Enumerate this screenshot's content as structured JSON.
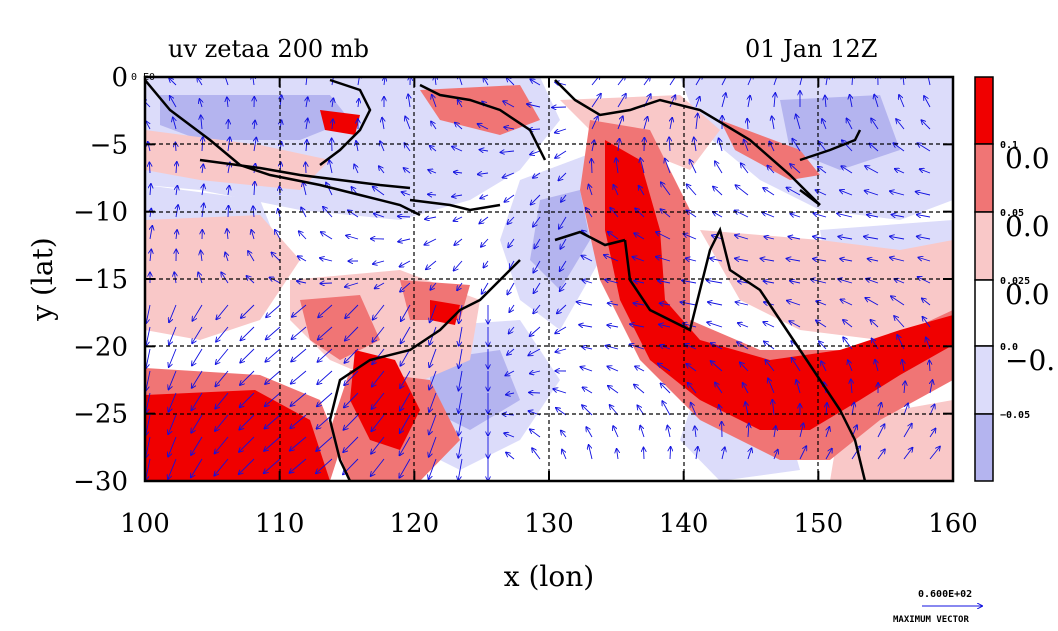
{
  "title_left": "uv zetaa 200 mb",
  "title_right": "01 Jan 12Z",
  "xlabel": "x (lon)",
  "ylabel": "y (lat)",
  "colors": {
    "strong_pos": "#f00000",
    "mid_pos": "#f07575",
    "weak_pos": "#f9c8c8",
    "weak_neg": "#dcdcfa",
    "mid_neg": "#b4b4ef",
    "vector": "#1010e0",
    "coast": "#000000"
  },
  "chart_data": {
    "type": "heatmap",
    "x": {
      "label": "x (lon)",
      "range": [
        100,
        160
      ],
      "ticks": [
        "100",
        "110",
        "120",
        "130",
        "140",
        "150",
        "160"
      ],
      "tick_values": [
        100,
        110,
        120,
        130,
        140,
        150,
        160
      ]
    },
    "y": {
      "label": "y (lat)",
      "range": [
        -30,
        0
      ],
      "ticks": [
        "0",
        "−5",
        "−10",
        "−15",
        "−20",
        "−25",
        "−30"
      ],
      "tick_values": [
        0,
        -5,
        -10,
        -15,
        -20,
        -25,
        -30
      ]
    },
    "grid": true,
    "legend": {
      "placement": "right",
      "labels": [
        {
          "small": "0.1",
          "big": "0.0"
        },
        {
          "small": "0.05",
          "big": "0.0"
        },
        {
          "small": "0.025",
          "big": "0.0"
        },
        {
          "small": "0.0",
          "big": "−0."
        },
        {
          "small": "−0.05",
          "big": ""
        }
      ]
    },
    "vectors": {
      "max_label": "0.600E+02",
      "caption": "MAXIMUM VECTOR"
    },
    "corner_label": "0 E0"
  }
}
